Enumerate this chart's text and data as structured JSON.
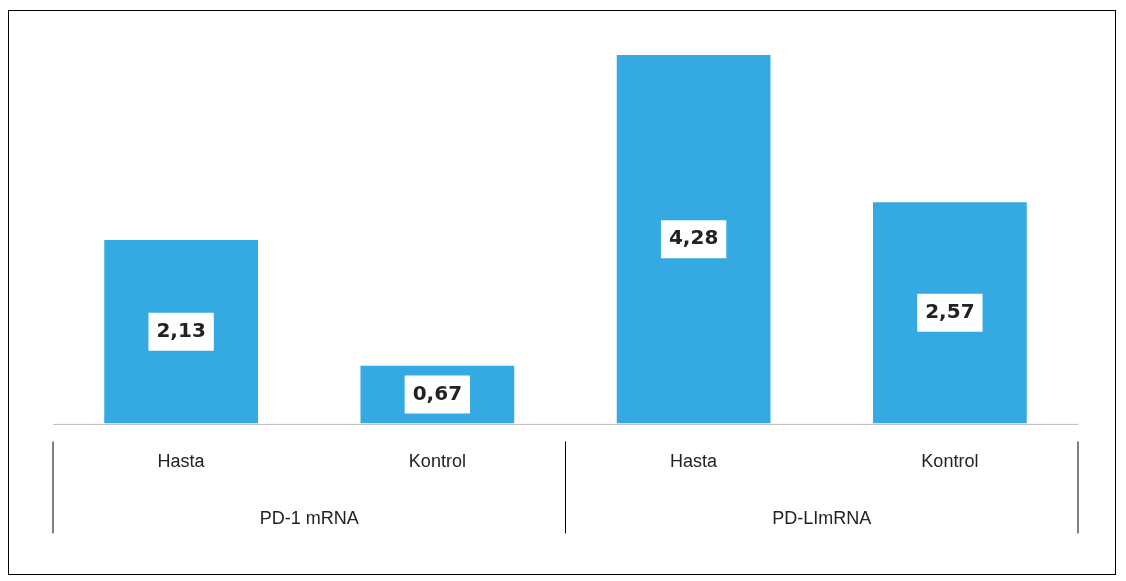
{
  "chart_data": {
    "type": "bar",
    "categories": [
      "Hasta",
      "Kontrol",
      "Hasta",
      "Kontrol"
    ],
    "values": [
      2.13,
      0.67,
      4.28,
      2.57
    ],
    "value_labels": [
      "2,13",
      "0,67",
      "4,28",
      "2,57"
    ],
    "color": "#35a9e1",
    "relative": false,
    "legend": false,
    "grid": false,
    "annotations": [
      "PD-1 mRNA",
      "PD-LImRNA"
    ]
  }
}
